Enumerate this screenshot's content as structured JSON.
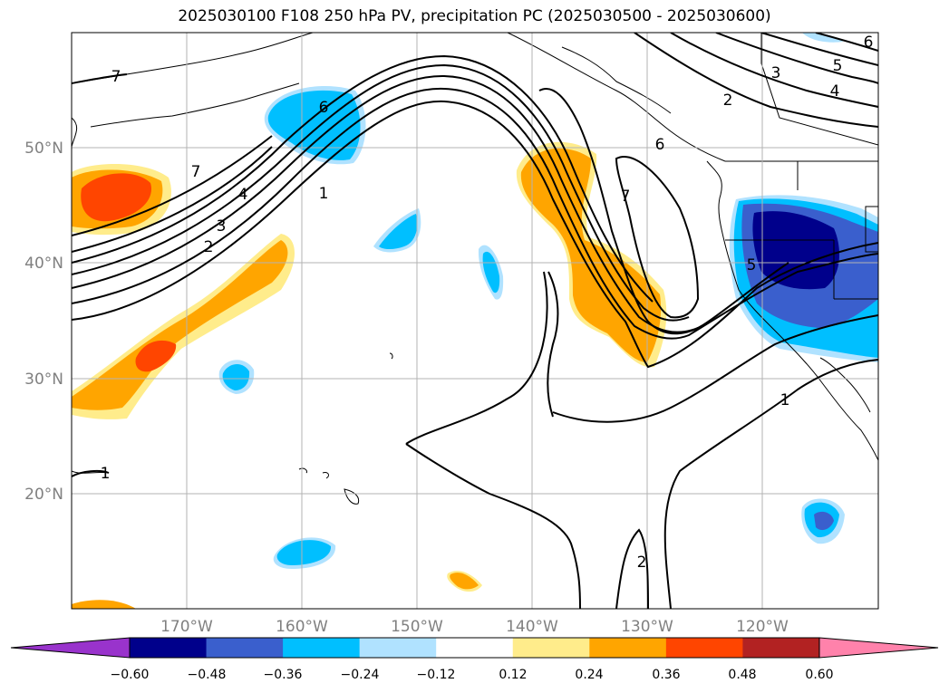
{
  "title": "2025030100 F108 250 hPa PV, precipitation PC (2025030500 - 2025030600)",
  "lat_labels": [
    "50°N",
    "40°N",
    "30°N",
    "20°N"
  ],
  "lon_labels": [
    "170°W",
    "160°W",
    "150°W",
    "140°W",
    "130°W",
    "120°W"
  ],
  "colorbar": {
    "ticks": [
      "−0.60",
      "−0.48",
      "−0.36",
      "−0.24",
      "−0.12",
      "0.12",
      "0.24",
      "0.36",
      "0.48",
      "0.60"
    ],
    "colors": [
      "#9933cc",
      "#00008b",
      "#3a5fcd",
      "#00bfff",
      "#b0e2ff",
      "#ffffff",
      "#ffec8b",
      "#ffa500",
      "#ff4500",
      "#b22222",
      "#ff82ab"
    ]
  },
  "contour_labels": [
    "7",
    "7",
    "6",
    "6",
    "5",
    "5",
    "4",
    "4",
    "3",
    "3",
    "2",
    "2",
    "2",
    "1",
    "1",
    "1",
    "7",
    "6"
  ],
  "map_extent": {
    "lon": [
      "180°W",
      "110°W"
    ],
    "lat": [
      "10°N",
      "60°N"
    ]
  }
}
